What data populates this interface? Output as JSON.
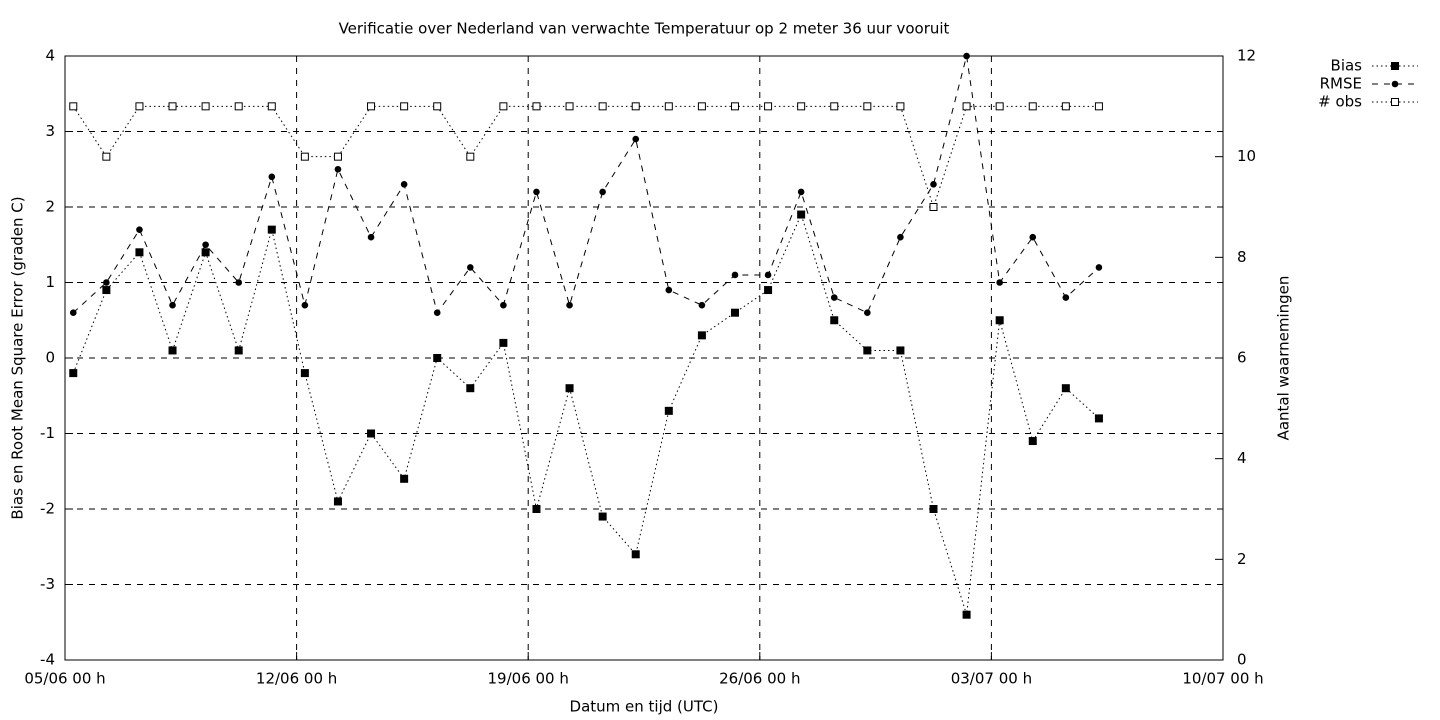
{
  "chart_data": {
    "type": "line",
    "title": "Verificatie over Nederland van verwachte Temperatuur op 2 meter 36 uur vooruit",
    "x_label": "Datum en tijd (UTC)",
    "y_label": "Bias en Root Mean Square Error (graden C)",
    "y2_label": "Aantal waarnemingen",
    "x": [
      0.25,
      1.25,
      2.25,
      3.25,
      4.25,
      5.25,
      6.25,
      7.25,
      8.25,
      9.25,
      10.25,
      11.25,
      12.25,
      13.25,
      14.25,
      15.25,
      16.25,
      17.25,
      18.25,
      19.25,
      20.25,
      21.25,
      22.25,
      23.25,
      24.25,
      25.25,
      26.25,
      27.25,
      28.25,
      29.25,
      30.25,
      31.25
    ],
    "xlim": [
      0,
      35
    ],
    "xticks": [
      {
        "value": 0,
        "label": "05/06 00 h"
      },
      {
        "value": 7,
        "label": "12/06 00 h"
      },
      {
        "value": 14,
        "label": "19/06 00 h"
      },
      {
        "value": 21,
        "label": "26/06 00 h"
      },
      {
        "value": 28,
        "label": "03/07 00 h"
      },
      {
        "value": 35,
        "label": "10/07 00 h"
      }
    ],
    "ylim": [
      -4,
      4
    ],
    "yticks": [
      -4,
      -3,
      -2,
      -1,
      0,
      1,
      2,
      3,
      4
    ],
    "y2lim": [
      0,
      12
    ],
    "y2ticks": [
      0,
      2,
      4,
      6,
      8,
      10,
      12
    ],
    "grid": true,
    "legend": "outside-top-right",
    "series": [
      {
        "name": "Bias",
        "color": "#000000",
        "marker": "filled-square",
        "dash": "dotted",
        "values": [
          -0.2,
          0.9,
          1.4,
          0.1,
          1.4,
          0.1,
          1.7,
          -0.2,
          -1.9,
          -1.0,
          -1.6,
          0.0,
          -0.4,
          0.2,
          -2.0,
          -0.4,
          -2.1,
          -2.6,
          -0.7,
          0.3,
          0.6,
          0.9,
          1.9,
          0.5,
          0.1,
          0.1,
          -2.0,
          -3.4,
          0.5,
          -1.1,
          -0.4,
          -0.8
        ]
      },
      {
        "name": "RMSE",
        "color": "#000000",
        "marker": "filled-circle",
        "dash": "dashed",
        "values": [
          0.6,
          1.0,
          1.7,
          0.7,
          1.5,
          1.0,
          2.4,
          0.7,
          2.5,
          1.6,
          2.3,
          0.6,
          1.2,
          0.7,
          2.2,
          0.7,
          2.2,
          2.9,
          0.9,
          0.7,
          1.1,
          1.1,
          2.2,
          0.8,
          0.6,
          1.6,
          2.3,
          4.0,
          1.0,
          1.6,
          0.8,
          1.2
        ]
      },
      {
        "name": "# obs",
        "color": "#000000",
        "marker": "open-square",
        "dash": "dotted",
        "axis": "y2",
        "values": [
          11,
          10,
          11,
          11,
          11,
          11,
          11,
          10,
          10,
          11,
          11,
          11,
          10,
          11,
          11,
          11,
          11,
          11,
          11,
          11,
          11,
          11,
          11,
          11,
          11,
          11,
          9,
          11,
          11,
          11,
          11,
          11
        ]
      }
    ]
  }
}
